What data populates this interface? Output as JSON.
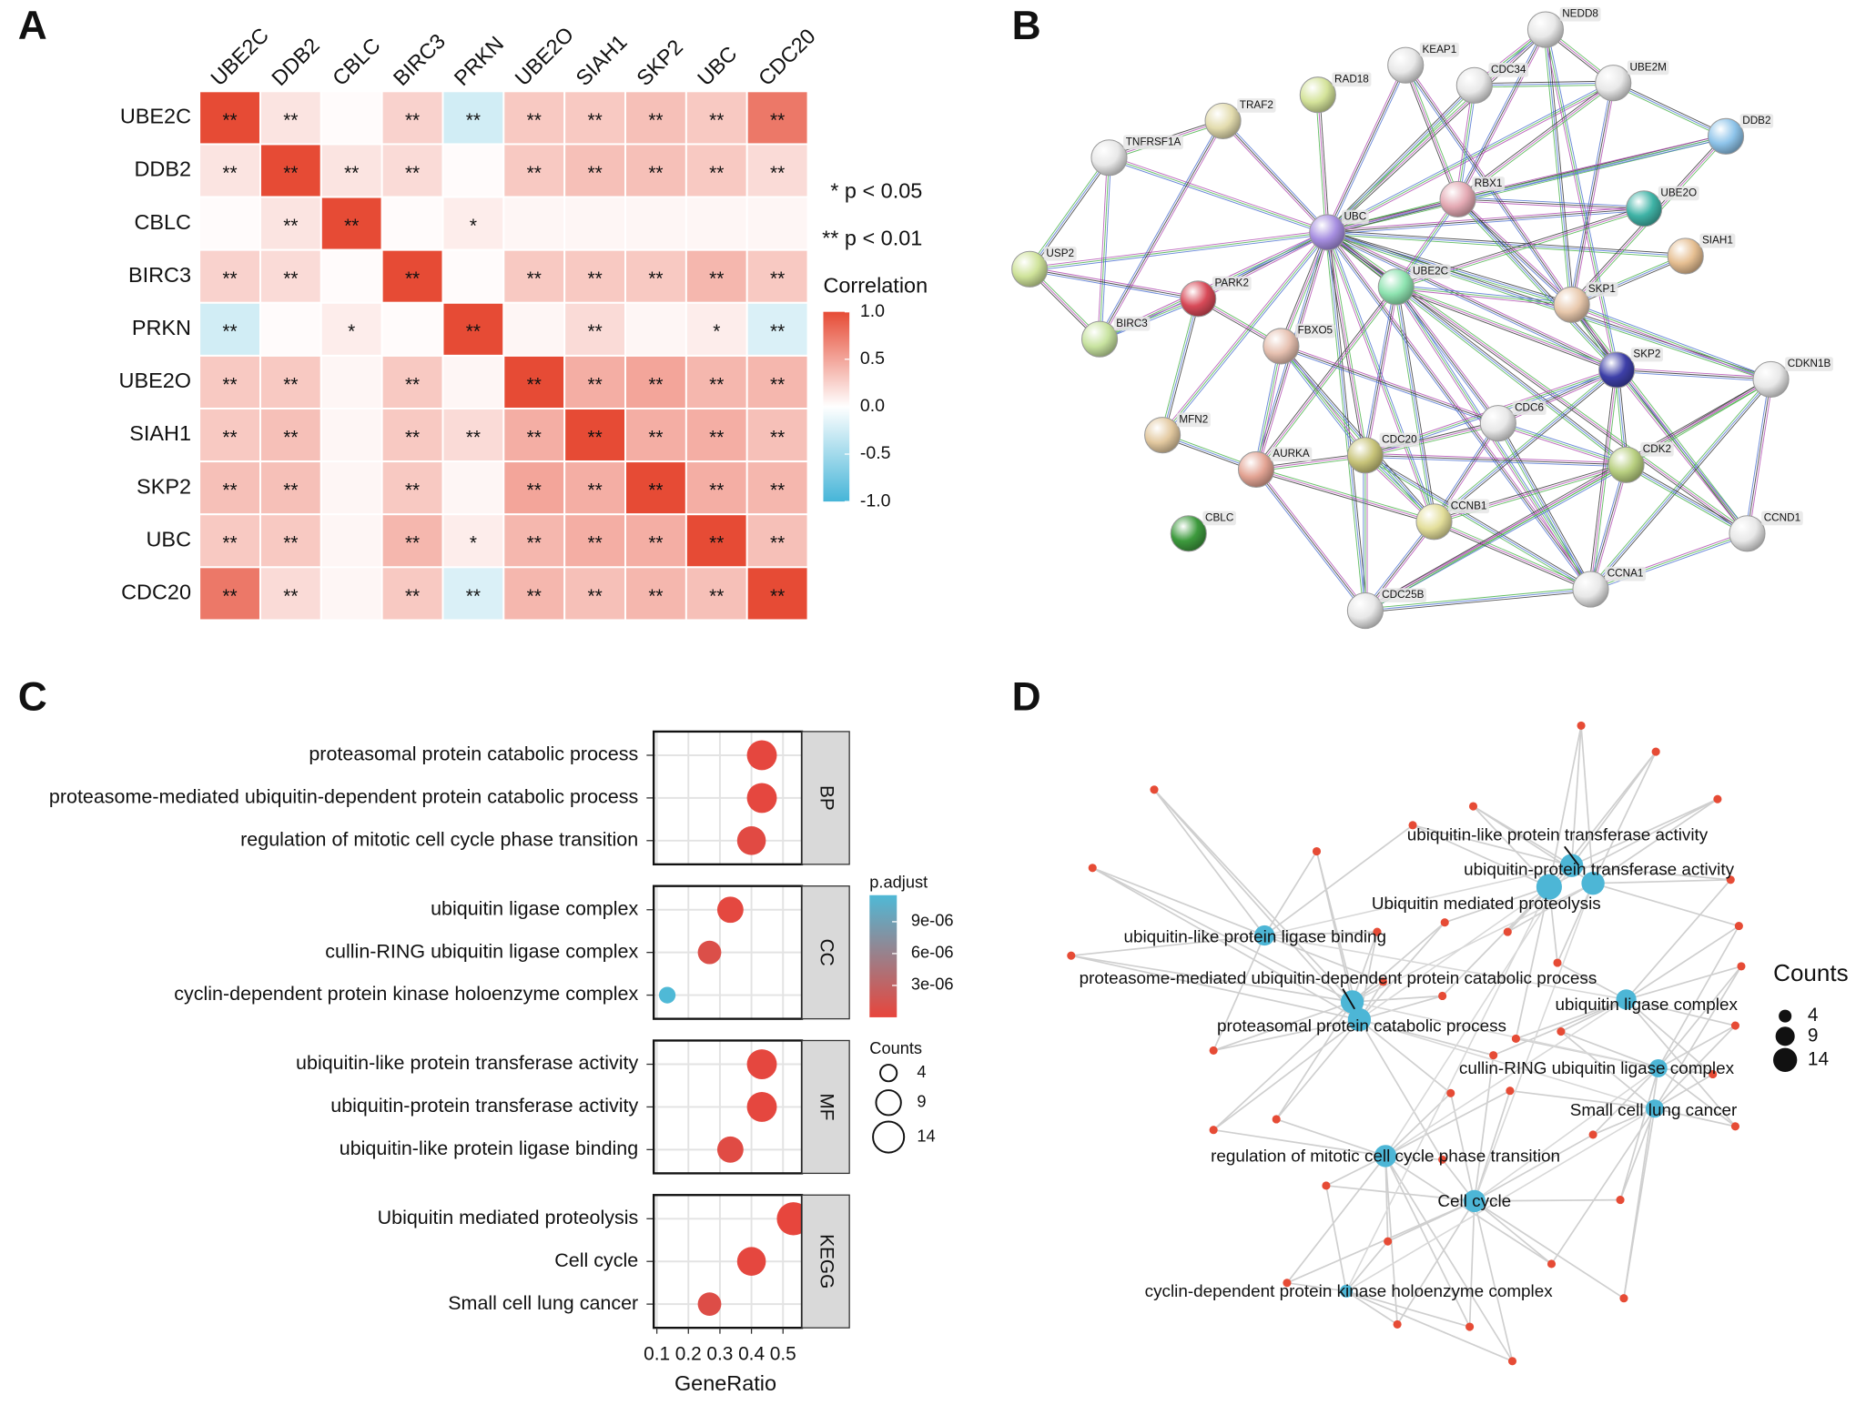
{
  "panel_labels": [
    "A",
    "B",
    "C",
    "D"
  ],
  "chart_data": [
    {
      "type": "heatmap",
      "rows": [
        "UBE2C",
        "DDB2",
        "CBLC",
        "BIRC3",
        "PRKN",
        "UBE2O",
        "SIAH1",
        "SKP2",
        "UBC",
        "CDC20"
      ],
      "columns": [
        "UBE2C",
        "DDB2",
        "CBLC",
        "BIRC3",
        "PRKN",
        "UBE2O",
        "SIAH1",
        "SKP2",
        "UBC",
        "CDC20"
      ],
      "values": [
        [
          1,
          0.15,
          0.02,
          0.25,
          -0.25,
          0.3,
          0.3,
          0.35,
          0.3,
          0.75
        ],
        [
          0.15,
          1,
          0.15,
          0.2,
          0.02,
          0.3,
          0.35,
          0.35,
          0.3,
          0.2
        ],
        [
          0.02,
          0.15,
          1,
          0.02,
          0.1,
          0.05,
          0.05,
          0.05,
          0.05,
          0.05
        ],
        [
          0.25,
          0.2,
          0.02,
          1,
          0.02,
          0.3,
          0.3,
          0.3,
          0.4,
          0.3
        ],
        [
          -0.25,
          0.02,
          0.1,
          0.02,
          1,
          0.05,
          0.2,
          0.05,
          0.1,
          -0.2
        ],
        [
          0.3,
          0.3,
          0.05,
          0.3,
          0.05,
          1,
          0.45,
          0.5,
          0.4,
          0.4
        ],
        [
          0.3,
          0.35,
          0.05,
          0.3,
          0.2,
          0.45,
          1,
          0.45,
          0.45,
          0.35
        ],
        [
          0.35,
          0.35,
          0.05,
          0.3,
          0.05,
          0.5,
          0.45,
          1,
          0.45,
          0.4
        ],
        [
          0.3,
          0.3,
          0.05,
          0.4,
          0.1,
          0.4,
          0.45,
          0.45,
          1,
          0.35
        ],
        [
          0.75,
          0.2,
          0.05,
          0.3,
          -0.2,
          0.4,
          0.35,
          0.4,
          0.35,
          1
        ]
      ],
      "stars": [
        [
          "**",
          "**",
          null,
          "**",
          "**",
          "**",
          "**",
          "**",
          "**",
          "**"
        ],
        [
          "**",
          "**",
          "**",
          "**",
          null,
          "**",
          "**",
          "**",
          "**",
          "**"
        ],
        [
          null,
          "**",
          "**",
          null,
          "*",
          null,
          null,
          null,
          null,
          null
        ],
        [
          "**",
          "**",
          null,
          "**",
          null,
          "**",
          "**",
          "**",
          "**",
          "**"
        ],
        [
          "**",
          null,
          "*",
          null,
          "**",
          null,
          "**",
          null,
          "*",
          "**"
        ],
        [
          "**",
          "**",
          null,
          "**",
          null,
          "**",
          "**",
          "**",
          "**",
          "**"
        ],
        [
          "**",
          "**",
          null,
          "**",
          "**",
          "**",
          "**",
          "**",
          "**",
          "**"
        ],
        [
          "**",
          "**",
          null,
          "**",
          null,
          "**",
          "**",
          "**",
          "**",
          "**"
        ],
        [
          "**",
          "**",
          null,
          "**",
          "*",
          "**",
          "**",
          "**",
          "**",
          "**"
        ],
        [
          "**",
          "**",
          null,
          "**",
          "**",
          "**",
          "**",
          "**",
          "**",
          "**"
        ]
      ],
      "legend_notes": [
        "* p < 0.05",
        "** p < 0.01"
      ],
      "colorbar_title": "Correlation",
      "clim": [
        -1,
        1
      ],
      "cticks": [
        {
          "value": 1,
          "label": "1.0"
        },
        0.5,
        {
          "value": 0,
          "label": "0.0"
        },
        -0.5,
        {
          "value": -1,
          "label": "-1.0"
        }
      ],
      "colors": {
        "low": "#46b5d8",
        "mid": "#ffffff",
        "high": "#e64b35"
      }
    },
    {
      "type": "dotplot",
      "groups": [
        {
          "name": "BP",
          "terms": [
            "proteasomal protein catabolic process",
            "proteasome-mediated ubiquitin-dependent protein catabolic process",
            "regulation of mitotic cell cycle phase transition"
          ],
          "gene_ratio": [
            0.433,
            0.433,
            0.4
          ],
          "counts": [
            13,
            13,
            12
          ],
          "p_adjust": [
            2e-07,
            2e-07,
            5e-07
          ]
        },
        {
          "name": "CC",
          "terms": [
            "ubiquitin ligase complex",
            "cullin-RING ubiquitin ligase complex",
            "cyclin-dependent protein kinase holoenzyme complex"
          ],
          "gene_ratio": [
            0.333,
            0.267,
            0.133
          ],
          "counts": [
            10,
            8,
            4
          ],
          "p_adjust": [
            3e-07,
            1e-06,
            1.15e-05
          ]
        },
        {
          "name": "MF",
          "terms": [
            "ubiquitin-like protein transferase activity",
            "ubiquitin-protein transferase activity",
            "ubiquitin-like protein ligase binding"
          ],
          "gene_ratio": [
            0.433,
            0.433,
            0.333
          ],
          "counts": [
            13,
            13,
            10
          ],
          "p_adjust": [
            2e-07,
            2e-07,
            6e-07
          ]
        },
        {
          "name": "KEGG",
          "terms": [
            "Ubiquitin mediated proteolysis",
            "Cell cycle",
            "Small cell lung cancer"
          ],
          "gene_ratio": [
            0.533,
            0.4,
            0.267
          ],
          "counts": [
            16,
            12,
            8
          ],
          "p_adjust": [
            1e-07,
            2e-07,
            8e-07
          ]
        }
      ],
      "xlabel": "GeneRatio",
      "xlim": [
        0.09,
        0.56
      ],
      "xticks": [
        0.1,
        0.2,
        0.3,
        0.4,
        0.5
      ],
      "color_title": "p.adjust",
      "clim": [
        0,
        1.15e-05
      ],
      "cticks": [
        {
          "value": 9e-06,
          "label": "9e-06"
        },
        {
          "value": 6e-06,
          "label": "6e-06"
        },
        {
          "value": 3e-06,
          "label": "3e-06"
        }
      ],
      "size_title": "Counts",
      "size_legend": [
        4,
        9,
        14
      ],
      "colors": {
        "low": "#e8453c",
        "high": "#4fb9d6"
      }
    }
  ],
  "string_network": {
    "nodes": [
      {
        "label": "NEDD8",
        "color": "#e8e8e8"
      },
      {
        "label": "KEAP1",
        "color": "#e8e8e8"
      },
      {
        "label": "CDC34",
        "color": "#e8e8e8"
      },
      {
        "label": "UBE2M",
        "color": "#e8e8e8"
      },
      {
        "label": "RAD18",
        "color": "#d4e39a"
      },
      {
        "label": "TRAF2",
        "color": "#e3dcae"
      },
      {
        "label": "DDB2",
        "color": "#8ec4ea"
      },
      {
        "label": "TNFRSF1A",
        "color": "#e8e8e8"
      },
      {
        "label": "RBX1",
        "color": "#e4aab4"
      },
      {
        "label": "UBE2O",
        "color": "#3fb3a6"
      },
      {
        "label": "UBC",
        "color": "#a68ee0"
      },
      {
        "label": "SIAH1",
        "color": "#e6bf92"
      },
      {
        "label": "USP2",
        "color": "#cfe39a"
      },
      {
        "label": "UBE2C",
        "color": "#8ee3b0"
      },
      {
        "label": "PARK2",
        "color": "#d84a58"
      },
      {
        "label": "SKP1",
        "color": "#e8c8ac"
      },
      {
        "label": "BIRC3",
        "color": "#c8e3a0"
      },
      {
        "label": "FBXO5",
        "color": "#e6c0b0"
      },
      {
        "label": "SKP2",
        "color": "#3d3fa8"
      },
      {
        "label": "CDKN1B",
        "color": "#e8e8e8"
      },
      {
        "label": "MFN2",
        "color": "#e3c9a0"
      },
      {
        "label": "CDC6",
        "color": "#e8e8e8"
      },
      {
        "label": "CDC20",
        "color": "#c8c47a"
      },
      {
        "label": "AURKA",
        "color": "#e3a494"
      },
      {
        "label": "CDK2",
        "color": "#b8cf80"
      },
      {
        "label": "CBLC",
        "color": "#3d9a3d"
      },
      {
        "label": "CCNB1",
        "color": "#e3de9a"
      },
      {
        "label": "CCND1",
        "color": "#e8e8e8"
      },
      {
        "label": "CCNA1",
        "color": "#e8e8e8"
      },
      {
        "label": "CDC25B",
        "color": "#e8e8e8"
      }
    ],
    "edges": [
      [
        10,
        0
      ],
      [
        10,
        1
      ],
      [
        10,
        2
      ],
      [
        10,
        3
      ],
      [
        10,
        4
      ],
      [
        10,
        5
      ],
      [
        10,
        6
      ],
      [
        10,
        7
      ],
      [
        10,
        8
      ],
      [
        10,
        9
      ],
      [
        10,
        11
      ],
      [
        10,
        12
      ],
      [
        10,
        13
      ],
      [
        10,
        14
      ],
      [
        10,
        15
      ],
      [
        10,
        16
      ],
      [
        10,
        17
      ],
      [
        10,
        18
      ],
      [
        10,
        19
      ],
      [
        10,
        20
      ],
      [
        10,
        22
      ],
      [
        10,
        23
      ],
      [
        10,
        24
      ],
      [
        10,
        26
      ],
      [
        10,
        27
      ],
      [
        10,
        28
      ],
      [
        10,
        29
      ],
      [
        0,
        2
      ],
      [
        0,
        3
      ],
      [
        0,
        8
      ],
      [
        0,
        15
      ],
      [
        0,
        18
      ],
      [
        1,
        8
      ],
      [
        1,
        15
      ],
      [
        2,
        3
      ],
      [
        2,
        8
      ],
      [
        3,
        8
      ],
      [
        3,
        15
      ],
      [
        3,
        6
      ],
      [
        6,
        8
      ],
      [
        6,
        15
      ],
      [
        8,
        15
      ],
      [
        8,
        18
      ],
      [
        8,
        13
      ],
      [
        9,
        13
      ],
      [
        9,
        8
      ],
      [
        11,
        15
      ],
      [
        13,
        15
      ],
      [
        13,
        18
      ],
      [
        13,
        22
      ],
      [
        13,
        26
      ],
      [
        13,
        28
      ],
      [
        13,
        23
      ],
      [
        13,
        21
      ],
      [
        15,
        18
      ],
      [
        15,
        19
      ],
      [
        15,
        27
      ],
      [
        18,
        19
      ],
      [
        18,
        24
      ],
      [
        18,
        27
      ],
      [
        18,
        28
      ],
      [
        18,
        21
      ],
      [
        18,
        26
      ],
      [
        18,
        22
      ],
      [
        19,
        24
      ],
      [
        19,
        27
      ],
      [
        19,
        28
      ],
      [
        21,
        24
      ],
      [
        21,
        22
      ],
      [
        21,
        26
      ],
      [
        21,
        28
      ],
      [
        22,
        26
      ],
      [
        22,
        23
      ],
      [
        22,
        24
      ],
      [
        22,
        28
      ],
      [
        22,
        17
      ],
      [
        23,
        26
      ],
      [
        23,
        29
      ],
      [
        23,
        20
      ],
      [
        23,
        17
      ],
      [
        24,
        26
      ],
      [
        24,
        28
      ],
      [
        24,
        27
      ],
      [
        24,
        29
      ],
      [
        26,
        28
      ],
      [
        26,
        29
      ],
      [
        28,
        29
      ],
      [
        27,
        28
      ],
      [
        5,
        7
      ],
      [
        5,
        16
      ],
      [
        7,
        12
      ],
      [
        7,
        16
      ],
      [
        12,
        16
      ],
      [
        12,
        14
      ],
      [
        14,
        20
      ],
      [
        14,
        16
      ],
      [
        14,
        17
      ],
      [
        17,
        21
      ],
      [
        17,
        26
      ],
      [
        29,
        22
      ],
      [
        19,
        29
      ]
    ]
  },
  "enrichment_network": {
    "terms": [
      {
        "label": "ubiquitin-like protein transferase activity",
        "count": 13
      },
      {
        "label": "ubiquitin-protein transferase activity",
        "count": 13
      },
      {
        "label": "Ubiquitin mediated proteolysis",
        "count": 16
      },
      {
        "label": "ubiquitin-like protein ligase binding",
        "count": 10
      },
      {
        "label": "proteasome-mediated ubiquitin-dependent protein catabolic process",
        "count": 13
      },
      {
        "label": "proteasomal protein catabolic process",
        "count": 13
      },
      {
        "label": "ubiquitin ligase complex",
        "count": 10
      },
      {
        "label": "cullin-RING ubiquitin ligase complex",
        "count": 8
      },
      {
        "label": "Small cell lung cancer",
        "count": 8
      },
      {
        "label": "regulation of mitotic cell cycle phase transition",
        "count": 12
      },
      {
        "label": "Cell cycle",
        "count": 12
      },
      {
        "label": "cyclin-dependent protein kinase holoenzyme complex",
        "count": 4
      }
    ],
    "size_title": "Counts",
    "size_legend": [
      4,
      9,
      14
    ],
    "term_color": "#4db6d6",
    "gene_color": "#e64b35"
  }
}
